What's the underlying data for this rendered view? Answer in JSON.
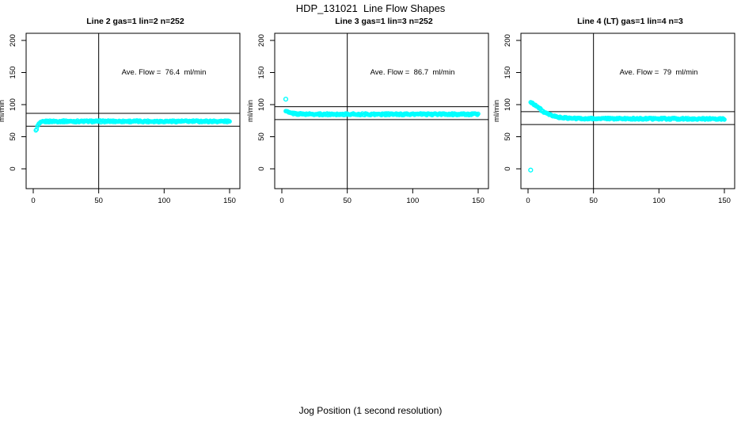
{
  "figure": {
    "title": "HDP_131021  Line Flow Shapes",
    "xlabel": "Jog Position (1 second resolution)"
  },
  "chart_data": [
    {
      "type": "scatter",
      "title": "Line 2 gas=1 lin=2 n=252",
      "ylabel": "ml/min",
      "xlim": [
        0,
        150
      ],
      "ylim": [
        0,
        200
      ],
      "x_ticks": [
        0,
        50,
        100,
        150
      ],
      "y_ticks": [
        0,
        50,
        100,
        150,
        200
      ],
      "n": 252,
      "ave_flow": 76.4,
      "annotation": "Ave. Flow =  76.4  ml/min",
      "ref_lines_h": [
        86.4,
        66.4
      ],
      "ref_line_v": 50,
      "marker_color": "#00FFFF",
      "series": {
        "x_start": 2,
        "x_end": 150,
        "points": 252,
        "jitter": 1.3,
        "keypoints": [
          [
            2,
            59
          ],
          [
            3,
            65
          ],
          [
            4,
            69
          ],
          [
            5,
            71
          ],
          [
            7,
            73
          ],
          [
            10,
            73.8
          ],
          [
            15,
            74
          ],
          [
            150,
            74
          ]
        ]
      },
      "outliers": []
    },
    {
      "type": "scatter",
      "title": "Line 3 gas=1 lin=3 n=252",
      "ylabel": "ml/min",
      "xlim": [
        0,
        150
      ],
      "ylim": [
        0,
        200
      ],
      "x_ticks": [
        0,
        50,
        100,
        150
      ],
      "y_ticks": [
        0,
        50,
        100,
        150,
        200
      ],
      "n": 252,
      "ave_flow": 86.7,
      "annotation": "Ave. Flow =  86.7  ml/min",
      "ref_lines_h": [
        96.7,
        76.7
      ],
      "ref_line_v": 50,
      "marker_color": "#00FFFF",
      "series": {
        "x_start": 3,
        "x_end": 150,
        "points": 252,
        "jitter": 1.3,
        "keypoints": [
          [
            3,
            91
          ],
          [
            4,
            89
          ],
          [
            6,
            87
          ],
          [
            10,
            86
          ],
          [
            15,
            85.3
          ],
          [
            30,
            85
          ],
          [
            150,
            85
          ]
        ]
      },
      "outliers": [
        [
          3,
          108.5
        ]
      ]
    },
    {
      "type": "scatter",
      "title": "Line 4 (LT) gas=1 lin=4 n=3",
      "ylabel": "ml/min",
      "xlim": [
        0,
        150
      ],
      "ylim": [
        0,
        200
      ],
      "x_ticks": [
        0,
        50,
        100,
        150
      ],
      "y_ticks": [
        0,
        50,
        100,
        150,
        200
      ],
      "n": 3,
      "ave_flow": 79,
      "annotation": "Ave. Flow =  79  ml/min",
      "ref_lines_h": [
        89,
        69
      ],
      "ref_line_v": 50,
      "marker_color": "#00FFFF",
      "series": {
        "x_start": 2,
        "x_end": 150,
        "points": 252,
        "jitter": 1.2,
        "keypoints": [
          [
            2,
            103.5
          ],
          [
            4,
            101.5
          ],
          [
            6,
            98.5
          ],
          [
            8,
            95.5
          ],
          [
            11,
            90
          ],
          [
            14,
            86
          ],
          [
            18,
            83
          ],
          [
            22,
            80.8
          ],
          [
            26,
            79.6
          ],
          [
            32,
            78.6
          ],
          [
            45,
            78.2
          ],
          [
            80,
            78
          ],
          [
            150,
            77.8
          ]
        ]
      },
      "outliers": [
        [
          2,
          -2
        ]
      ]
    }
  ]
}
